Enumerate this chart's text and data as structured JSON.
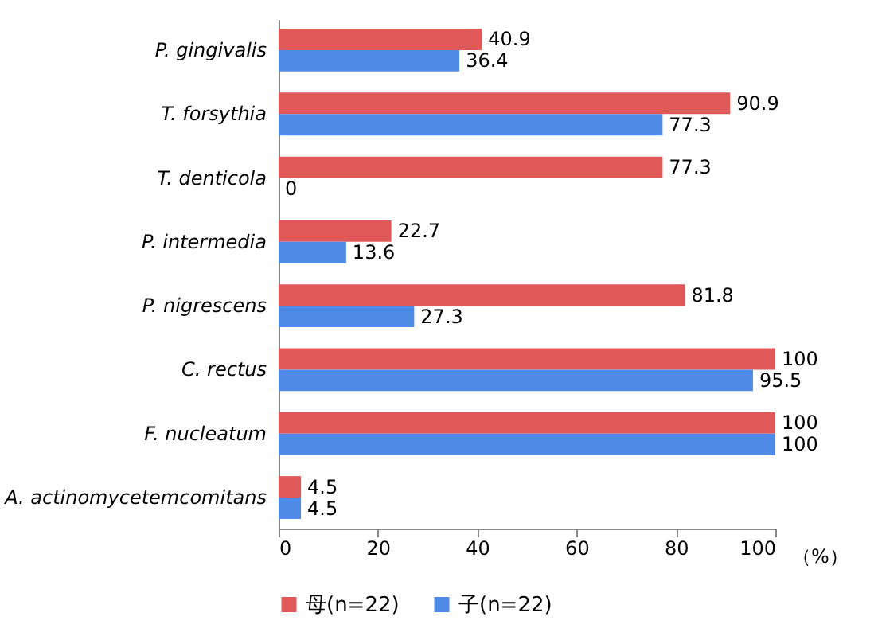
{
  "chart_data": {
    "type": "bar",
    "orientation": "horizontal",
    "xlabel": "（%）",
    "categories": [
      "P. gingivalis",
      "T. forsythia",
      "T. denticola",
      "P. intermedia",
      "P. nigrescens",
      "C. rectus",
      "F. nucleatum",
      "A. actinomycetemcomitans"
    ],
    "series": [
      {
        "name": "母(n=22)",
        "color": "#e05858",
        "values": [
          40.9,
          90.9,
          77.3,
          22.7,
          81.8,
          100,
          100,
          4.5
        ]
      },
      {
        "name": "子(n=22)",
        "color": "#4f8be6",
        "values": [
          36.4,
          77.3,
          0,
          13.6,
          27.3,
          95.5,
          100,
          4.5
        ]
      }
    ],
    "xlim": [
      0,
      100
    ],
    "xticks": [
      0,
      20,
      40,
      60,
      80,
      100
    ],
    "grid": false,
    "legend": "bottom",
    "data_labels": true
  }
}
